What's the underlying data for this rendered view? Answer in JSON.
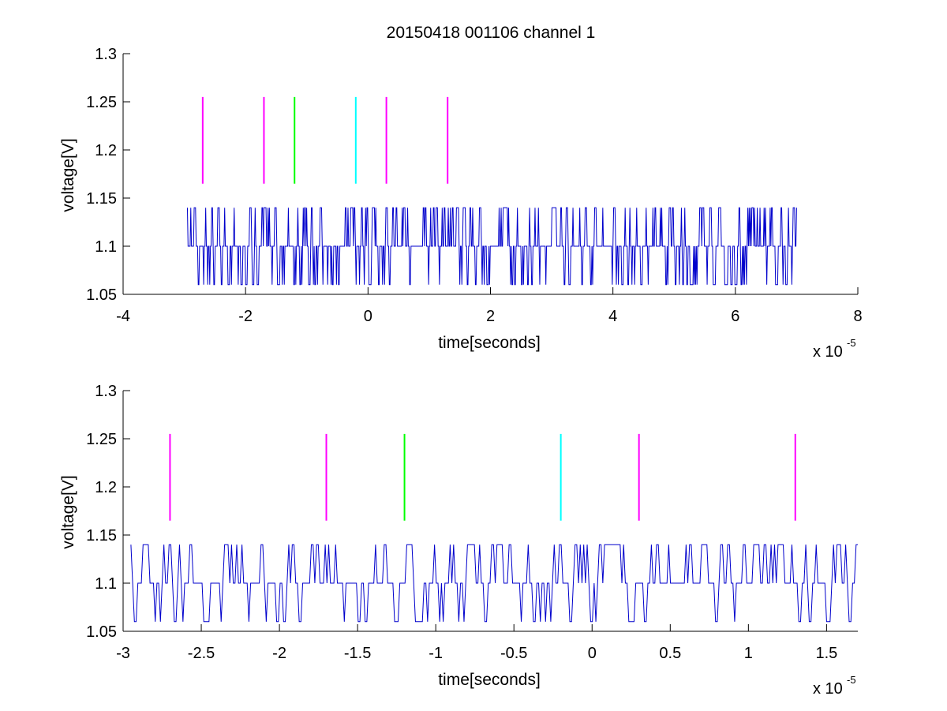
{
  "figure": {
    "title": "20150418 001106 channel 1"
  },
  "chart_data": [
    {
      "type": "line",
      "xlabel": "time[seconds]",
      "ylabel": "voltage[V]",
      "x_multiplier_base": "x 10",
      "x_multiplier_exp": "-5",
      "xlim": [
        -4,
        8
      ],
      "ylim": [
        1.05,
        1.3
      ],
      "x_ticks": [
        -4,
        -2,
        0,
        2,
        4,
        6,
        8
      ],
      "x_tick_labels": [
        "-4",
        "-2",
        "0",
        "2",
        "4",
        "6",
        "8"
      ],
      "y_ticks": [
        1.05,
        1.1,
        1.15,
        1.2,
        1.25,
        1.3
      ],
      "y_tick_labels": [
        "1.05",
        "1.1",
        "1.15",
        "1.2",
        "1.25",
        "1.3"
      ],
      "grid": false,
      "trace": {
        "color": "#0000cc",
        "x_range": [
          -2.95,
          7.0
        ],
        "levels": [
          1.06,
          1.1,
          1.14
        ]
      },
      "markers": [
        {
          "x": -2.7,
          "y0": 1.165,
          "y1": 1.255,
          "color": "#ff00ff"
        },
        {
          "x": -1.7,
          "y0": 1.165,
          "y1": 1.255,
          "color": "#ff00ff"
        },
        {
          "x": -1.2,
          "y0": 1.165,
          "y1": 1.255,
          "color": "#00ff00"
        },
        {
          "x": -0.2,
          "y0": 1.165,
          "y1": 1.255,
          "color": "#00ffff"
        },
        {
          "x": 0.3,
          "y0": 1.165,
          "y1": 1.255,
          "color": "#ff00ff"
        },
        {
          "x": 1.3,
          "y0": 1.165,
          "y1": 1.255,
          "color": "#ff00ff"
        }
      ]
    },
    {
      "type": "line",
      "xlabel": "time[seconds]",
      "ylabel": "voltage[V]",
      "x_multiplier_base": "x 10",
      "x_multiplier_exp": "-5",
      "xlim": [
        -3.0,
        1.7
      ],
      "ylim": [
        1.05,
        1.3
      ],
      "x_ticks": [
        -3,
        -2.5,
        -2,
        -1.5,
        -1,
        -0.5,
        0,
        0.5,
        1,
        1.5
      ],
      "x_tick_labels": [
        "-3",
        "-2.5",
        "-2",
        "-1.5",
        "-1",
        "-0.5",
        "0",
        "0.5",
        "1",
        "1.5"
      ],
      "y_ticks": [
        1.05,
        1.1,
        1.15,
        1.2,
        1.25,
        1.3
      ],
      "y_tick_labels": [
        "1.05",
        "1.1",
        "1.15",
        "1.2",
        "1.25",
        "1.3"
      ],
      "grid": false,
      "trace": {
        "color": "#0000cc",
        "x_range": [
          -2.95,
          1.7
        ],
        "levels": [
          1.06,
          1.1,
          1.14
        ]
      },
      "markers": [
        {
          "x": -2.7,
          "y0": 1.165,
          "y1": 1.255,
          "color": "#ff00ff"
        },
        {
          "x": -1.7,
          "y0": 1.165,
          "y1": 1.255,
          "color": "#ff00ff"
        },
        {
          "x": -1.2,
          "y0": 1.165,
          "y1": 1.255,
          "color": "#00ff00"
        },
        {
          "x": -0.2,
          "y0": 1.165,
          "y1": 1.255,
          "color": "#00ffff"
        },
        {
          "x": 0.3,
          "y0": 1.165,
          "y1": 1.255,
          "color": "#ff00ff"
        },
        {
          "x": 1.3,
          "y0": 1.165,
          "y1": 1.255,
          "color": "#ff00ff"
        }
      ]
    }
  ]
}
